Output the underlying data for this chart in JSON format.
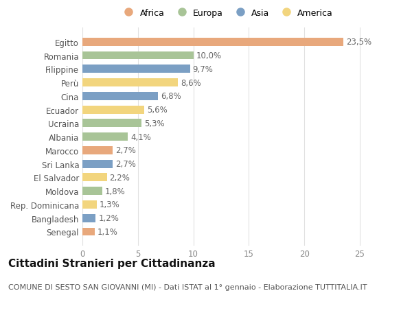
{
  "categories": [
    "Egitto",
    "Romania",
    "Filippine",
    "Perù",
    "Cina",
    "Ecuador",
    "Ucraina",
    "Albania",
    "Marocco",
    "Sri Lanka",
    "El Salvador",
    "Moldova",
    "Rep. Dominicana",
    "Bangladesh",
    "Senegal"
  ],
  "values": [
    23.5,
    10.0,
    9.7,
    8.6,
    6.8,
    5.6,
    5.3,
    4.1,
    2.7,
    2.7,
    2.2,
    1.8,
    1.3,
    1.2,
    1.1
  ],
  "continents": [
    "Africa",
    "Europa",
    "Asia",
    "America",
    "Asia",
    "America",
    "Europa",
    "Europa",
    "Africa",
    "Asia",
    "America",
    "Europa",
    "America",
    "Asia",
    "Africa"
  ],
  "continent_colors": {
    "Africa": "#E8A87C",
    "Europa": "#A8C497",
    "Asia": "#7B9FC4",
    "America": "#F2D57E"
  },
  "legend_order": [
    "Africa",
    "Europa",
    "Asia",
    "America"
  ],
  "labels": [
    "23,5%",
    "10,0%",
    "9,7%",
    "8,6%",
    "6,8%",
    "5,6%",
    "5,3%",
    "4,1%",
    "2,7%",
    "2,7%",
    "2,2%",
    "1,8%",
    "1,3%",
    "1,2%",
    "1,1%"
  ],
  "xlim": [
    0,
    26
  ],
  "xticks": [
    0,
    5,
    10,
    15,
    20,
    25
  ],
  "title": "Cittadini Stranieri per Cittadinanza",
  "subtitle": "COMUNE DI SESTO SAN GIOVANNI (MI) - Dati ISTAT al 1° gennaio - Elaborazione TUTTITALIA.IT",
  "bg_color": "#ffffff",
  "grid_color": "#e0e0e0",
  "bar_height": 0.6,
  "label_fontsize": 8.5,
  "tick_fontsize": 8.5,
  "title_fontsize": 11,
  "subtitle_fontsize": 8
}
